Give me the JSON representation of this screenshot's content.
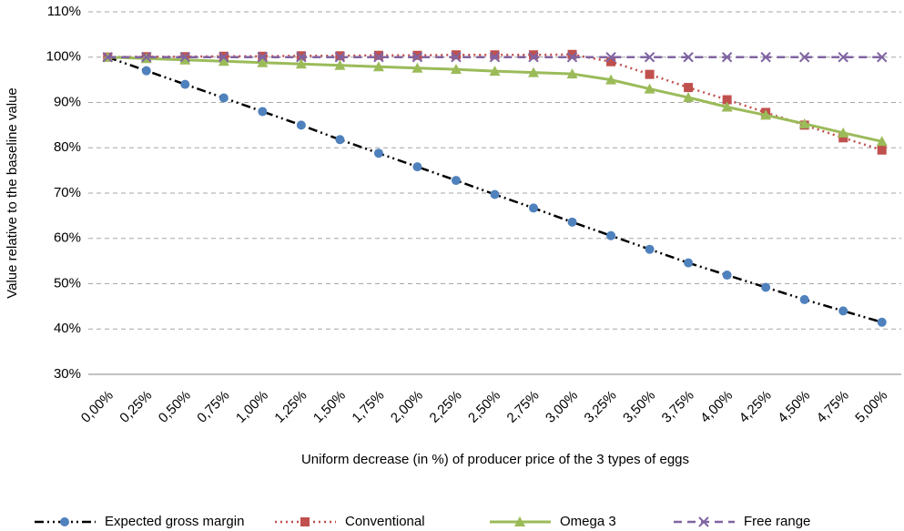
{
  "chart_data": {
    "type": "line",
    "y_label": "Value relative to the baseline value",
    "x_label": "Uniform decrease (in %) of producer price of the 3 types of eggs",
    "categories": [
      "0,00%",
      "0,25%",
      "0,50%",
      "0,75%",
      "1,00%",
      "1,25%",
      "1,50%",
      "1,75%",
      "2,00%",
      "2,25%",
      "2,50%",
      "2,75%",
      "3,00%",
      "3,25%",
      "3,50%",
      "3,75%",
      "4,00%",
      "4,25%",
      "4,50%",
      "4,75%",
      "5,00%"
    ],
    "ylim": [
      30,
      110
    ],
    "yticks": [
      {
        "value": 30,
        "label": "30%"
      },
      {
        "value": 40,
        "label": "40%"
      },
      {
        "value": 50,
        "label": "50%"
      },
      {
        "value": 60,
        "label": "60%"
      },
      {
        "value": 70,
        "label": "70%"
      },
      {
        "value": 80,
        "label": "80%"
      },
      {
        "value": 90,
        "label": "90%"
      },
      {
        "value": 100,
        "label": "100%"
      },
      {
        "value": 110,
        "label": "110%"
      }
    ],
    "grid": true,
    "legend": "bottom",
    "series": [
      {
        "name": "Expected gross margin",
        "color": "#4f81bd",
        "line_color": "#000000",
        "marker": "circle",
        "dash": "dashdotdot",
        "values": [
          100,
          97,
          94,
          91,
          88,
          85,
          81.8,
          78.8,
          75.8,
          72.8,
          69.7,
          66.7,
          63.6,
          60.6,
          57.6,
          54.6,
          51.9,
          49.2,
          46.5,
          44,
          41.5
        ]
      },
      {
        "name": "Conventional",
        "color": "#c0504d",
        "line_color": "#c0504d",
        "marker": "square",
        "dash": "dot",
        "values": [
          100,
          100.1,
          100.1,
          100.2,
          100.2,
          100.3,
          100.3,
          100.4,
          100.4,
          100.5,
          100.5,
          100.5,
          100.6,
          99,
          96.2,
          93.3,
          90.6,
          87.8,
          85,
          82.2,
          79.5
        ]
      },
      {
        "name": "Omega 3",
        "color": "#9bbb59",
        "line_color": "#9bbb59",
        "marker": "triangle",
        "dash": "solid",
        "values": [
          100,
          99.7,
          99.4,
          99.1,
          98.8,
          98.5,
          98.2,
          97.9,
          97.6,
          97.3,
          96.9,
          96.6,
          96.3,
          95,
          93,
          91.1,
          89,
          87.2,
          85.3,
          83.3,
          81.4
        ]
      },
      {
        "name": "Free range",
        "color": "#8064a2",
        "line_color": "#8064a2",
        "marker": "x",
        "dash": "dash",
        "values": [
          100,
          100,
          100,
          100,
          100,
          100,
          100,
          100,
          100,
          100,
          100,
          100,
          100,
          100,
          100,
          100,
          100,
          100,
          100,
          100,
          100
        ]
      }
    ]
  }
}
